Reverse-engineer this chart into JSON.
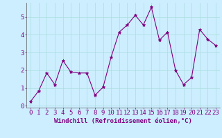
{
  "x": [
    0,
    1,
    2,
    3,
    4,
    5,
    6,
    7,
    8,
    9,
    10,
    11,
    12,
    13,
    14,
    15,
    16,
    17,
    18,
    19,
    20,
    21,
    22,
    23
  ],
  "y": [
    0.25,
    0.85,
    1.85,
    1.2,
    2.55,
    1.9,
    1.85,
    1.85,
    0.6,
    1.05,
    2.75,
    4.15,
    4.55,
    5.1,
    4.55,
    5.55,
    3.7,
    4.15,
    2.0,
    1.2,
    1.6,
    4.3,
    3.75,
    3.4
  ],
  "line_color": "#800080",
  "marker": "*",
  "marker_size": 3.5,
  "bg_color": "#cceeff",
  "grid_color": "#aadddd",
  "xlabel": "Windchill (Refroidissement éolien,°C)",
  "xlim": [
    -0.5,
    23.5
  ],
  "ylim": [
    -0.1,
    5.8
  ],
  "yticks": [
    0,
    1,
    2,
    3,
    4,
    5
  ],
  "xticks": [
    0,
    1,
    2,
    3,
    4,
    5,
    6,
    7,
    8,
    9,
    10,
    11,
    12,
    13,
    14,
    15,
    16,
    17,
    18,
    19,
    20,
    21,
    22,
    23
  ],
  "xlabel_fontsize": 6.5,
  "tick_fontsize": 6.5,
  "tick_color": "#800080",
  "spine_color": "#555555",
  "line_width": 0.8
}
